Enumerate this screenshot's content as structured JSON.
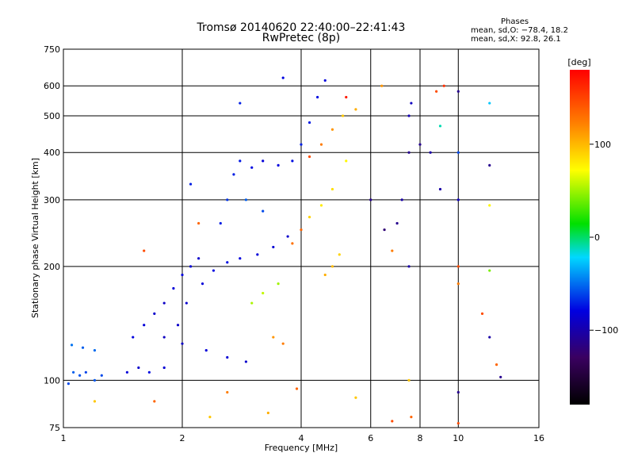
{
  "title": {
    "line1": "Tromsø 20140620 22:40:00–22:41:43",
    "line2": "RwPretec (8p)"
  },
  "stats": {
    "heading": "Phases",
    "o_mode": "mean, sd,O: −78.4, 18.2",
    "x_mode": "mean, sd,X:  92.8, 26.1"
  },
  "chart_data": {
    "type": "scatter",
    "xlabel": "Frequency [MHz]",
    "ylabel": "Stationary phase Virtual Height [km]",
    "xscale": "log",
    "yscale": "log",
    "xlim": [
      1,
      16
    ],
    "ylim": [
      75,
      750
    ],
    "xticks": [
      1,
      2,
      4,
      6,
      8,
      10,
      16
    ],
    "xtick_labels": [
      "1",
      "2",
      "4",
      "6",
      "8",
      "10",
      "16"
    ],
    "yticks": [
      75,
      100,
      200,
      300,
      400,
      500,
      600,
      750
    ],
    "ytick_labels": [
      "75",
      "100",
      "200",
      "300",
      "400",
      "500",
      "600",
      "750"
    ],
    "grid": true,
    "colorbar": {
      "label": "[deg]",
      "range": [
        -180,
        180
      ],
      "ticks": [
        100,
        0,
        -100
      ],
      "tick_labels": [
        "100",
        "0",
        "−100"
      ],
      "colors": [
        "#000000",
        "#3a0060",
        "#0000e0",
        "#00d8ff",
        "#00e000",
        "#ffff00",
        "#ff8000",
        "#ff0000"
      ]
    },
    "series": [
      {
        "values": [
          {
            "x": 1.03,
            "y": 98,
            "phase": -60
          },
          {
            "x": 1.06,
            "y": 105,
            "phase": -55
          },
          {
            "x": 1.1,
            "y": 103,
            "phase": -58
          },
          {
            "x": 1.14,
            "y": 105,
            "phase": -62
          },
          {
            "x": 1.2,
            "y": 100,
            "phase": -57
          },
          {
            "x": 1.25,
            "y": 103,
            "phase": -60
          },
          {
            "x": 1.05,
            "y": 124,
            "phase": -50
          },
          {
            "x": 1.12,
            "y": 122,
            "phase": -55
          },
          {
            "x": 1.2,
            "y": 120,
            "phase": -52
          },
          {
            "x": 1.45,
            "y": 105,
            "phase": -80
          },
          {
            "x": 1.55,
            "y": 108,
            "phase": -85
          },
          {
            "x": 1.65,
            "y": 105,
            "phase": -75
          },
          {
            "x": 1.8,
            "y": 108,
            "phase": -82
          },
          {
            "x": 1.5,
            "y": 130,
            "phase": -78
          },
          {
            "x": 1.6,
            "y": 140,
            "phase": -80
          },
          {
            "x": 1.7,
            "y": 150,
            "phase": -85
          },
          {
            "x": 1.8,
            "y": 160,
            "phase": -88
          },
          {
            "x": 1.9,
            "y": 175,
            "phase": -80
          },
          {
            "x": 2.0,
            "y": 190,
            "phase": -78
          },
          {
            "x": 2.1,
            "y": 200,
            "phase": -82
          },
          {
            "x": 2.2,
            "y": 210,
            "phase": -85
          },
          {
            "x": 1.8,
            "y": 130,
            "phase": -90
          },
          {
            "x": 2.0,
            "y": 125,
            "phase": -88
          },
          {
            "x": 2.3,
            "y": 120,
            "phase": -80
          },
          {
            "x": 2.6,
            "y": 115,
            "phase": -82
          },
          {
            "x": 2.9,
            "y": 112,
            "phase": -85
          },
          {
            "x": 1.95,
            "y": 140,
            "phase": -86
          },
          {
            "x": 2.05,
            "y": 160,
            "phase": -84
          },
          {
            "x": 2.25,
            "y": 180,
            "phase": -80
          },
          {
            "x": 2.4,
            "y": 195,
            "phase": -76
          },
          {
            "x": 2.6,
            "y": 205,
            "phase": -74
          },
          {
            "x": 2.8,
            "y": 210,
            "phase": -78
          },
          {
            "x": 3.1,
            "y": 215,
            "phase": -80
          },
          {
            "x": 3.4,
            "y": 225,
            "phase": -82
          },
          {
            "x": 3.7,
            "y": 240,
            "phase": -85
          },
          {
            "x": 2.5,
            "y": 260,
            "phase": -70
          },
          {
            "x": 2.6,
            "y": 300,
            "phase": -65
          },
          {
            "x": 2.7,
            "y": 350,
            "phase": -70
          },
          {
            "x": 2.8,
            "y": 380,
            "phase": -72
          },
          {
            "x": 3.0,
            "y": 365,
            "phase": -75
          },
          {
            "x": 3.2,
            "y": 380,
            "phase": -80
          },
          {
            "x": 3.5,
            "y": 370,
            "phase": -78
          },
          {
            "x": 3.8,
            "y": 380,
            "phase": -74
          },
          {
            "x": 4.0,
            "y": 420,
            "phase": -70
          },
          {
            "x": 4.2,
            "y": 480,
            "phase": -72
          },
          {
            "x": 4.4,
            "y": 560,
            "phase": -75
          },
          {
            "x": 4.6,
            "y": 620,
            "phase": -78
          },
          {
            "x": 3.6,
            "y": 630,
            "phase": -76
          },
          {
            "x": 2.8,
            "y": 540,
            "phase": -70
          },
          {
            "x": 2.9,
            "y": 300,
            "phase": -55
          },
          {
            "x": 3.2,
            "y": 280,
            "phase": -60
          },
          {
            "x": 3.0,
            "y": 160,
            "phase": 60
          },
          {
            "x": 3.2,
            "y": 170,
            "phase": 65
          },
          {
            "x": 3.5,
            "y": 180,
            "phase": 58
          },
          {
            "x": 3.4,
            "y": 130,
            "phase": 120
          },
          {
            "x": 3.6,
            "y": 125,
            "phase": 130
          },
          {
            "x": 3.8,
            "y": 230,
            "phase": 135
          },
          {
            "x": 4.0,
            "y": 250,
            "phase": 140
          },
          {
            "x": 4.2,
            "y": 270,
            "phase": 95
          },
          {
            "x": 4.5,
            "y": 290,
            "phase": 85
          },
          {
            "x": 4.8,
            "y": 320,
            "phase": 90
          },
          {
            "x": 4.6,
            "y": 190,
            "phase": 110
          },
          {
            "x": 4.8,
            "y": 200,
            "phase": 105
          },
          {
            "x": 5.0,
            "y": 215,
            "phase": 95
          },
          {
            "x": 4.2,
            "y": 390,
            "phase": 150
          },
          {
            "x": 4.5,
            "y": 420,
            "phase": 130
          },
          {
            "x": 4.8,
            "y": 460,
            "phase": 120
          },
          {
            "x": 5.1,
            "y": 500,
            "phase": 100
          },
          {
            "x": 5.2,
            "y": 380,
            "phase": 80
          },
          {
            "x": 5.5,
            "y": 520,
            "phase": 110
          },
          {
            "x": 5.2,
            "y": 560,
            "phase": 170
          },
          {
            "x": 6.0,
            "y": 300,
            "phase": -110
          },
          {
            "x": 6.5,
            "y": 250,
            "phase": -120
          },
          {
            "x": 6.8,
            "y": 220,
            "phase": 130
          },
          {
            "x": 7.0,
            "y": 260,
            "phase": -110
          },
          {
            "x": 7.2,
            "y": 300,
            "phase": -100
          },
          {
            "x": 7.5,
            "y": 500,
            "phase": -95
          },
          {
            "x": 7.6,
            "y": 540,
            "phase": -90
          },
          {
            "x": 7.5,
            "y": 400,
            "phase": -110
          },
          {
            "x": 7.5,
            "y": 200,
            "phase": -100
          },
          {
            "x": 7.5,
            "y": 100,
            "phase": 100
          },
          {
            "x": 8.0,
            "y": 420,
            "phase": -110
          },
          {
            "x": 8.5,
            "y": 400,
            "phase": -100
          },
          {
            "x": 8.8,
            "y": 580,
            "phase": 150
          },
          {
            "x": 9.2,
            "y": 600,
            "phase": 160
          },
          {
            "x": 9.0,
            "y": 470,
            "phase": -10
          },
          {
            "x": 9.0,
            "y": 320,
            "phase": -100
          },
          {
            "x": 10.0,
            "y": 580,
            "phase": -110
          },
          {
            "x": 10.0,
            "y": 400,
            "phase": -60
          },
          {
            "x": 10.0,
            "y": 300,
            "phase": -90
          },
          {
            "x": 10.0,
            "y": 200,
            "phase": 150
          },
          {
            "x": 10.0,
            "y": 180,
            "phase": 130
          },
          {
            "x": 10.0,
            "y": 93,
            "phase": -110
          },
          {
            "x": 12.0,
            "y": 540,
            "phase": -30
          },
          {
            "x": 12.0,
            "y": 370,
            "phase": -110
          },
          {
            "x": 12.0,
            "y": 290,
            "phase": 80
          },
          {
            "x": 12.0,
            "y": 195,
            "phase": 50
          },
          {
            "x": 12.0,
            "y": 130,
            "phase": -100
          },
          {
            "x": 12.5,
            "y": 110,
            "phase": 140
          },
          {
            "x": 12.8,
            "y": 102,
            "phase": -110
          },
          {
            "x": 11.5,
            "y": 150,
            "phase": 150
          },
          {
            "x": 2.1,
            "y": 330,
            "phase": -70
          },
          {
            "x": 2.2,
            "y": 260,
            "phase": 140
          },
          {
            "x": 1.6,
            "y": 220,
            "phase": 150
          },
          {
            "x": 1.2,
            "y": 88,
            "phase": 100
          },
          {
            "x": 1.7,
            "y": 88,
            "phase": 140
          },
          {
            "x": 2.35,
            "y": 80,
            "phase": 100
          },
          {
            "x": 2.6,
            "y": 93,
            "phase": 130
          },
          {
            "x": 3.3,
            "y": 82,
            "phase": 110
          },
          {
            "x": 3.9,
            "y": 95,
            "phase": 140
          },
          {
            "x": 5.5,
            "y": 90,
            "phase": 100
          },
          {
            "x": 6.8,
            "y": 78,
            "phase": 150
          },
          {
            "x": 7.6,
            "y": 80,
            "phase": 140
          },
          {
            "x": 10.0,
            "y": 77,
            "phase": 150
          },
          {
            "x": 6.4,
            "y": 600,
            "phase": 120
          }
        ]
      }
    ]
  }
}
